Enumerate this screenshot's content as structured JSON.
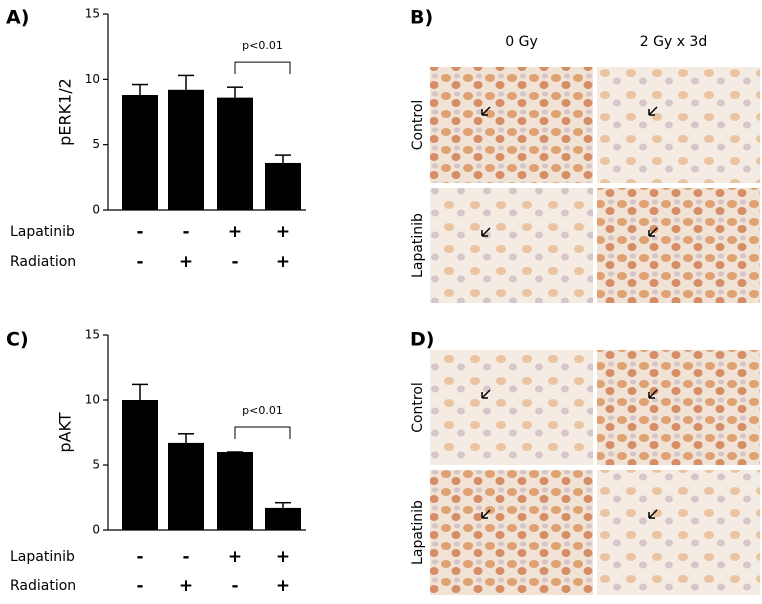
{
  "chart_data": [
    {
      "type": "bar",
      "panel_label": "A)",
      "ylabel": "pERK1/2",
      "annotation": "p<0.01",
      "values": [
        8.8,
        9.2,
        8.6,
        3.6
      ],
      "errors": [
        0.8,
        1.1,
        0.8,
        0.6
      ],
      "color": "#000000",
      "ylim": [
        0,
        15
      ],
      "yticks": [
        0,
        5,
        10,
        15
      ],
      "conditions": [
        {
          "name": "Lapatinib",
          "values": [
            "-",
            "-",
            "+",
            "+"
          ]
        },
        {
          "name": "Radiation",
          "values": [
            "-",
            "+",
            "-",
            "+"
          ]
        }
      ]
    },
    {
      "type": "bar",
      "panel_label": "C)",
      "ylabel": "pAKT",
      "annotation": "p<0.01",
      "values": [
        10,
        6.7,
        6.0,
        1.7
      ],
      "errors": [
        1.2,
        0.7,
        0,
        0.4
      ],
      "color": "#000000",
      "ylim": [
        0,
        15
      ],
      "yticks": [
        0,
        5,
        10,
        15
      ],
      "conditions": [
        {
          "name": "Lapatinib",
          "values": [
            "-",
            "-",
            "+",
            "+"
          ]
        },
        {
          "name": "Radiation",
          "values": [
            "-",
            "+",
            "-",
            "+"
          ]
        }
      ]
    }
  ],
  "image_panels": [
    {
      "label": "B)",
      "columns": [
        "0 Gy",
        "2 Gy x 3d"
      ],
      "rows": [
        "Control",
        "Lapatinib"
      ]
    },
    {
      "label": "D)",
      "rows": [
        "Control",
        "Lapatinib"
      ]
    }
  ]
}
